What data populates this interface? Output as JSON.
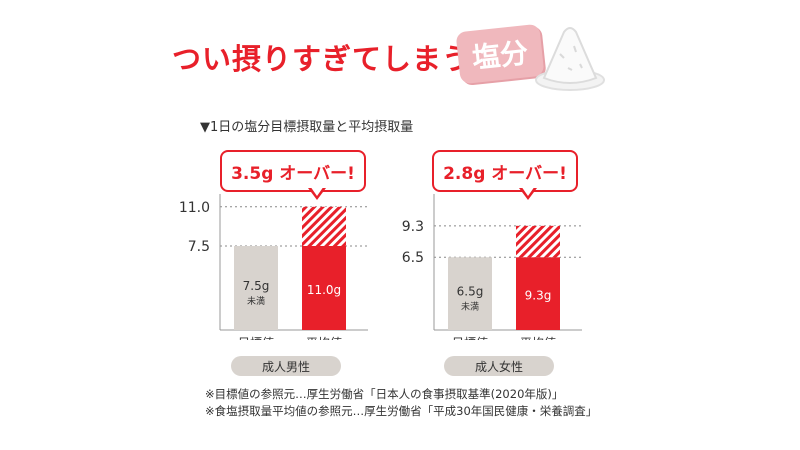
{
  "headline": "つい摂りすぎてしまう",
  "badge": "塩分",
  "subtitle": "▼1日の塩分目標摂取量と平均摂取量",
  "colors": {
    "target": "#d8d3ce",
    "average": "#e8202a",
    "over_hatch": "#e8202a",
    "accent": "#e8202a"
  },
  "chart_data": [
    {
      "type": "bar",
      "group_label": "成人男性",
      "categories": [
        "目標値",
        "平均値"
      ],
      "values": [
        7.5,
        11.0
      ],
      "bar_labels": [
        "7.5g",
        "11.0g"
      ],
      "bar_sublabels": [
        "未満",
        ""
      ],
      "reference_lines": [
        "11.0",
        "7.5"
      ],
      "reference_values": [
        11.0,
        7.5
      ],
      "callout": "3.5g オーバー!",
      "over_amount": 3.5,
      "ylim": [
        0,
        12.5
      ]
    },
    {
      "type": "bar",
      "group_label": "成人女性",
      "categories": [
        "目標値",
        "平均値"
      ],
      "values": [
        6.5,
        9.3
      ],
      "bar_labels": [
        "6.5g",
        "9.3g"
      ],
      "bar_sublabels": [
        "未満",
        ""
      ],
      "reference_lines": [
        "9.3",
        "6.5"
      ],
      "reference_values": [
        9.3,
        6.5
      ],
      "callout": "2.8g オーバー!",
      "over_amount": 2.8,
      "ylim": [
        0,
        12.5
      ]
    }
  ],
  "footnotes": [
    "※目標値の参照元…厚生労働省「日本人の食事摂取基準(2020年版)」",
    "※食塩摂取量平均値の参照元…厚生労働省「平成30年国民健康・栄養調査」"
  ]
}
